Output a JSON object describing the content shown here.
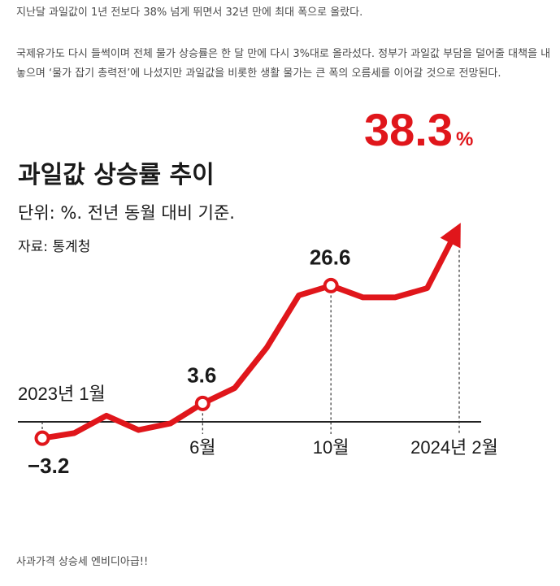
{
  "article": {
    "p1": "지난달 과일값이 1년 전보다 38% 넘게 뛰면서 32년 만에 최대 폭으로 올랐다.",
    "p2": "국제유가도 다시 들썩이며 전체 물가 상승률은 한 달 만에 다시 3%대로 올라섰다. 정부가 과일값 부담을 덜어줄 대책을 내놓으며 ‘물가 잡기 총력전’에 나섰지만 과일값을 비롯한 생활 물가는 큰 폭의 오름세를 이어갈 것으로 전망된다.",
    "p3": "사과가격 상승세 엔비디아급!!"
  },
  "chart_data": {
    "type": "line",
    "title": "과일값 상승률 추이",
    "subtitle": "단위: %. 전년 동월 대비 기준.",
    "source": "자료: 통계청",
    "x": [
      "2023-01",
      "2023-02",
      "2023-03",
      "2023-04",
      "2023-05",
      "2023-06",
      "2023-07",
      "2023-08",
      "2023-09",
      "2023-10",
      "2023-11",
      "2023-12",
      "2024-01",
      "2024-02"
    ],
    "values": [
      -3.2,
      -2.2,
      1.2,
      -1.6,
      -0.3,
      3.6,
      6.6,
      14.5,
      24.7,
      26.6,
      24.3,
      24.3,
      26.1,
      38.3
    ],
    "ylim": [
      -5,
      40
    ],
    "xtick_labels": [
      {
        "x": "2023-01",
        "label": "2023년 1월"
      },
      {
        "x": "2023-06",
        "label": "6월"
      },
      {
        "x": "2023-10",
        "label": "10월"
      },
      {
        "x": "2024-02",
        "label": "2024년 2월"
      }
    ],
    "annotations": [
      {
        "x": "2023-01",
        "text": "−3.2"
      },
      {
        "x": "2023-06",
        "text": "3.6"
      },
      {
        "x": "2023-10",
        "text": "26.6"
      }
    ],
    "final_value": "38.3",
    "final_unit": "%",
    "line_color": "#e0161b"
  }
}
